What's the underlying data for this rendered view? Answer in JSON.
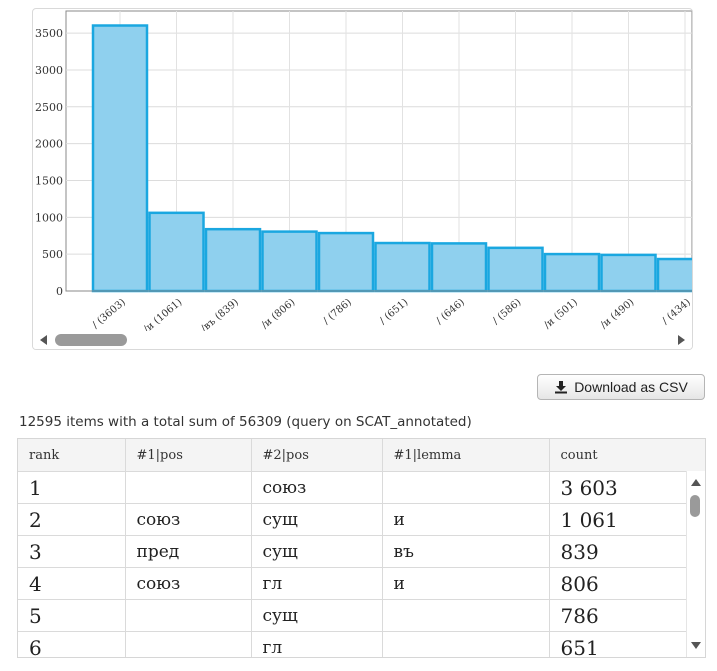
{
  "chart_data": {
    "type": "bar",
    "categories": [
      "/ (3603)",
      "/и (1061)",
      "/въ (839)",
      "/и (806)",
      "/ (786)",
      "/ (651)",
      "/ (646)",
      "/ (586)",
      "/и (501)",
      "/и (490)",
      "/ (434)"
    ],
    "values": [
      3603,
      1061,
      839,
      806,
      786,
      651,
      646,
      586,
      501,
      490,
      434
    ],
    "ylim": [
      0,
      3800
    ],
    "yticks": [
      0,
      500,
      1000,
      1500,
      2000,
      2500,
      3000,
      3500
    ],
    "grid": true,
    "bar_fill": "#8fd0ee",
    "bar_stroke": "#1aa7e0"
  },
  "download_label": "Download as CSV",
  "summary_text": "12595 items with a total sum of 56309 (query on SCAT_annotated)",
  "table": {
    "headers": [
      "rank",
      "#1|pos",
      "#2|pos",
      "#1|lemma",
      "count"
    ],
    "rows": [
      [
        "1",
        "",
        "союз",
        "",
        "3 603"
      ],
      [
        "2",
        "союз",
        "сущ",
        "и",
        "1 061"
      ],
      [
        "3",
        "пред",
        "сущ",
        "въ",
        "839"
      ],
      [
        "4",
        "союз",
        "гл",
        "и",
        "806"
      ],
      [
        "5",
        "",
        "сущ",
        "",
        "786"
      ],
      [
        "6",
        "",
        "гл",
        "",
        "651"
      ]
    ]
  }
}
